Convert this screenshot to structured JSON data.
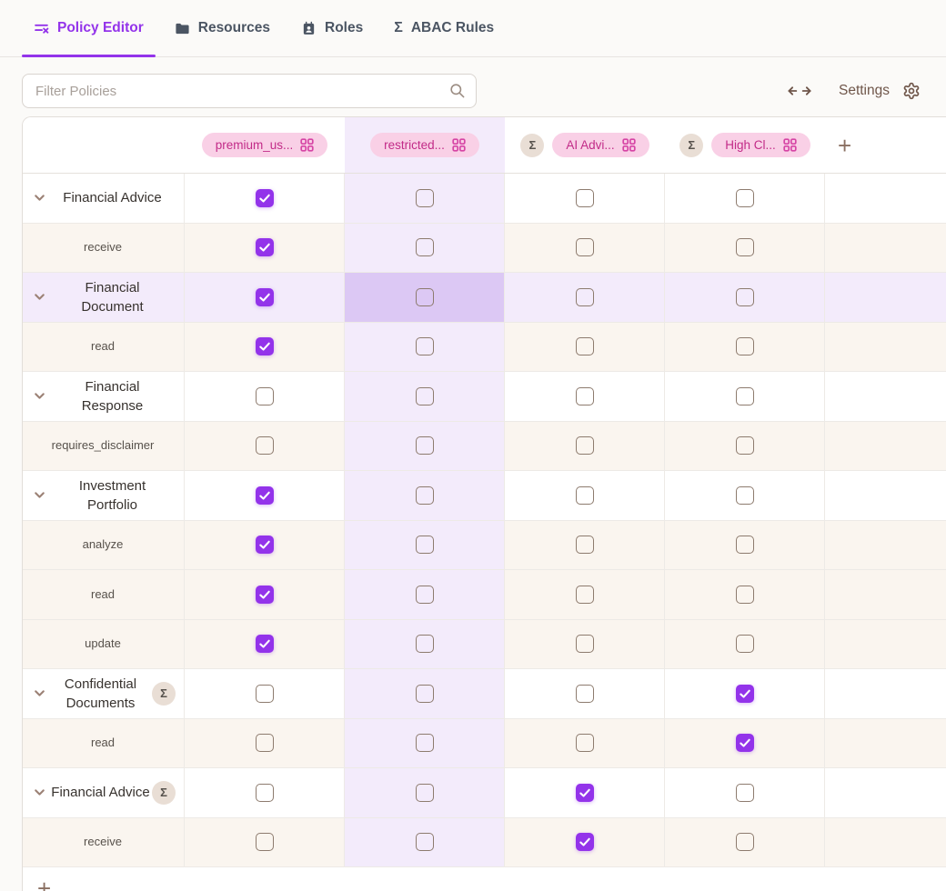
{
  "tabs": [
    {
      "label": "Policy Editor",
      "active": true
    },
    {
      "label": "Resources",
      "active": false
    },
    {
      "label": "Roles",
      "active": false
    },
    {
      "label": "ABAC Rules",
      "active": false
    }
  ],
  "toolbar": {
    "filter_placeholder": "Filter Policies",
    "settings_label": "Settings"
  },
  "matrix": {
    "columns": [
      {
        "label": "premium_us...",
        "aggregate": false,
        "highlighted": false
      },
      {
        "label": "restricted...",
        "aggregate": false,
        "highlighted": true
      },
      {
        "label": "AI Advi...",
        "aggregate": true,
        "highlighted": false
      },
      {
        "label": "High Cl...",
        "aggregate": true,
        "highlighted": false
      }
    ],
    "add_column_label": "+",
    "add_row_label": "+",
    "rows": [
      {
        "kind": "resource",
        "label": "Financial Advice",
        "aggregate": false,
        "highlighted": false,
        "checks": [
          true,
          false,
          false,
          false
        ]
      },
      {
        "kind": "action",
        "label": "receive",
        "aggregate": false,
        "highlighted": false,
        "checks": [
          true,
          false,
          false,
          false
        ]
      },
      {
        "kind": "resource",
        "label": "Financial Document",
        "aggregate": false,
        "highlighted": true,
        "checks": [
          true,
          false,
          false,
          false
        ]
      },
      {
        "kind": "action",
        "label": "read",
        "aggregate": false,
        "highlighted": false,
        "checks": [
          true,
          false,
          false,
          false
        ]
      },
      {
        "kind": "resource",
        "label": "Financial Response",
        "aggregate": false,
        "highlighted": false,
        "checks": [
          false,
          false,
          false,
          false
        ]
      },
      {
        "kind": "action",
        "label": "requires_disclaimer",
        "aggregate": false,
        "highlighted": false,
        "checks": [
          false,
          false,
          false,
          false
        ]
      },
      {
        "kind": "resource",
        "label": "Investment Portfolio",
        "aggregate": false,
        "highlighted": false,
        "checks": [
          true,
          false,
          false,
          false
        ]
      },
      {
        "kind": "action",
        "label": "analyze",
        "aggregate": false,
        "highlighted": false,
        "checks": [
          true,
          false,
          false,
          false
        ]
      },
      {
        "kind": "action",
        "label": "read",
        "aggregate": false,
        "highlighted": false,
        "checks": [
          true,
          false,
          false,
          false
        ]
      },
      {
        "kind": "action",
        "label": "update",
        "aggregate": false,
        "highlighted": false,
        "checks": [
          true,
          false,
          false,
          false
        ]
      },
      {
        "kind": "resource",
        "label": "Confidential Documents",
        "aggregate": true,
        "highlighted": false,
        "checks": [
          false,
          false,
          false,
          true
        ]
      },
      {
        "kind": "action",
        "label": "read",
        "aggregate": false,
        "highlighted": false,
        "checks": [
          false,
          false,
          false,
          true
        ]
      },
      {
        "kind": "resource",
        "label": "Financial Advice",
        "aggregate": true,
        "highlighted": false,
        "checks": [
          false,
          false,
          true,
          false
        ]
      },
      {
        "kind": "action",
        "label": "receive",
        "aggregate": false,
        "highlighted": false,
        "checks": [
          false,
          false,
          true,
          false
        ]
      }
    ]
  },
  "colors": {
    "accent": "#9333ea",
    "checkbox_checked": "#9333ea",
    "pill_bg": "#f9d0e6",
    "pill_text": "#c22b88",
    "pill_icon": "#d645a5",
    "column_highlight": "#f3ebfb",
    "intersection_highlight": "#dcc8f4",
    "action_row_bg": "#faf5ef",
    "sigma_badge_bg": "#e9ded5"
  }
}
